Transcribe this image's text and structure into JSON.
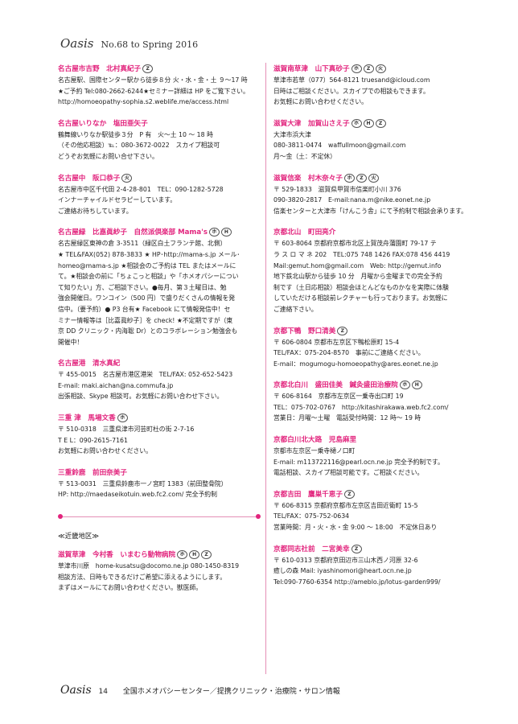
{
  "header": {
    "brand": "Oasis",
    "issue": "No.68 to Spring 2016"
  },
  "left_column": {
    "entries_top": [
      {
        "title": "名古屋市吉野　北村真紀子",
        "badges": [
          "Z"
        ],
        "lines": [
          "名古屋駅、国際センター駅から徒歩８分 火・水・金・土 ９～17 時",
          "★ご予約 Tel:080-2662-6244★セミナー詳細は HP をご覧下さい。",
          "http://homoeopathy-sophia.s2.weblife.me/access.html"
        ]
      },
      {
        "title": "名古屋いりなか　塩田亜矢子",
        "badges": [],
        "lines": [
          "鶴舞線いりなか駅徒歩３分　P 有　火～土 10 ～ 18 時",
          "（その他応相談）℡：080-3672-0022　スカイプ相談可",
          "どうぞお気軽にお問い合せ下さい。"
        ]
      },
      {
        "title": "名古屋中　阪口恭子",
        "badges": [
          "火"
        ],
        "lines": [
          "名古屋市中区千代田 2-4-28-801　TEL：090-1282-5728",
          "インナーチャイルドセラピーしています。",
          "ご連絡お待ちしています。"
        ]
      },
      {
        "title": "名古屋緑　比嘉眞紗子　自然派倶楽部 Mama's",
        "badges": [
          "ホ",
          "H"
        ],
        "lines": [
          "名古屋緑区東神の倉 3-3511（緑区白土フランテ館、北側）",
          "★ TEL&FAX(052) 878-3833 ★ HP･http://mama-s.jp メール･",
          "homeo@mama-s.jp ★相談会のご予約は TEL またはメールに",
          "て。★相談会の前に「ちょこっと相談」や「ホメオパシーについ",
          "て知りたい」方、ご相談下さい。●毎月、第３土曜日は、勉",
          "強会開催日。ワンコイン（500 円）で盛りだくさんの情報を発",
          "信中。（要予約）● P3 台有★ Facebook にて情報発信中！セ",
          "ミナー情報等は［比嘉眞紗子］を check! ★不定期ですが（東",
          "京 DD クリニック・内海聡 Dr）とのコラボレーション勉強会も",
          "開催中！"
        ]
      },
      {
        "title": "名古屋港　清水真紀",
        "badges": [],
        "lines": [
          "〒 455-0015　名古屋市港区港栄　TEL/FAX: 052-652-5423",
          "E-mail: maki.aichan@na.commufa.jp",
          "出張相談、Skype 相談可。お気軽にお問い合わせ下さい。"
        ]
      },
      {
        "title": "三重 津　馬場文香",
        "badges": [
          "ホ"
        ],
        "lines": [
          "〒 510-0318　三重県津市河芸町杜の街 2-7-16",
          "T E L：090-2615-7161",
          "お気軽にお問い合わせください。"
        ]
      },
      {
        "title": "三重鈴鹿　前田奈美子",
        "badges": [],
        "lines": [
          "〒 513-0031　三重県鈴鹿市一ノ宮町 1383（前田整骨院）",
          "HP: http://maedaseikotuin.web.fc2.com/ 完全予約制"
        ]
      }
    ],
    "region_label": "≪近畿地区≫",
    "entries_bottom": [
      {
        "title": "滋賀草津　今村香　いまむら動物病院",
        "badges": [
          "ホ",
          "H",
          "Z"
        ],
        "lines": [
          "草津市川原　home-kusatsu@docomo.ne.jp 080-1450-8319",
          "相談方法、日時もできるだけご希望に添えるようにします。",
          "まずはメールにてお問い合わせください。獣医師。"
        ]
      }
    ]
  },
  "right_column": {
    "entries": [
      {
        "title": "滋賀南草津　山下真砂子",
        "badges": [
          "ホ",
          "Z",
          "火"
        ],
        "lines": [
          "草津市若草（077）564-8121 truesand@icloud.com",
          "日時はご相談ください。スカイプでの相談もできます。",
          "お気軽にお問い合わせください。"
        ]
      },
      {
        "title": "滋賀大津　加賀山さえ子",
        "badges": [
          "ホ",
          "H",
          "Z"
        ],
        "lines": [
          "大津市浜大津",
          "080-3811-0474　waffullmoon@gmail.com",
          "月～金（土：不定休）"
        ]
      },
      {
        "title": "滋賀信楽　村木奈々子",
        "badges": [
          "ホ",
          "Z",
          "火"
        ],
        "lines": [
          "〒 529-1833　滋賀県甲賀市信楽町小川 376",
          "090-3820-2817　E-mail:nana.m@nike.eonet.ne.jp",
          "信楽センターと大津市「けんこう舎」にて予約制で相談会承ります。"
        ]
      },
      {
        "title": "京都北山　町田亮介",
        "badges": [],
        "lines": [
          "〒 603-8064 京都府京都市北区上賀茂舟蒲園町 79-17 テ",
          "ラ ス ロ マ ネ 202　TEL:075 748 1426 FAX:078 456 4419",
          "Mail:gemut.hom@gmail.com　Web: http://gemut.info",
          "地下鉄北山駅から徒歩 10 分　月曜から金曜までの完全予約",
          "制です（土日応相談）相談会ほとんどなものかなを実際に体験",
          "していただける相談前レクチャーも行っております。お気軽に",
          "ご連絡下さい。"
        ]
      },
      {
        "title": "京都下鴨　野口清美",
        "badges": [
          "Z"
        ],
        "lines": [
          "〒 606-0804 京都市左京区下鴨松原町 15-4",
          "TEL/FAX：075-204-8570　事前にご連絡ください。",
          "E-mail：mogumogu-homoeopathy@ares.eonet.ne.jp"
        ]
      },
      {
        "title": "京都北白川　盛田佳美　鍼灸盛田治療院",
        "badges": [
          "ホ",
          "H"
        ],
        "lines": [
          "〒 606-8164　京都市左京区一乗寺出口町 19",
          "TEL：075-702-0767　http://kitashirakawa.web.fc2.com/",
          "営業日：月曜～土曜　電話受付時間：12 時～ 19 時"
        ]
      },
      {
        "title": "京都白川北大路　児島麻里",
        "badges": [],
        "lines": [
          "京都市左京区一乗寺樋ノ口町",
          "E-mail: m113722116@pearl.ocn.ne.jp 完全予約制です。",
          "電話相談、スカイプ相談可能です。ご相談ください。"
        ]
      },
      {
        "title": "京都吉田　鷹巣千恵子",
        "badges": [
          "Z"
        ],
        "lines": [
          "〒 606-8315 京都府京都市左京区吉田近衛町 15-5",
          "TEL/FAX：075-752-0634",
          "営業時間：月・火・水・金 9:00 ～ 18:00　不定休日あり"
        ]
      },
      {
        "title": "京都同志社前　二宮美幸",
        "badges": [
          "Z"
        ],
        "lines": [
          "〒 610-0313 京都府京田辺市三山木西ノ河原 32-6",
          "癒しの森 Mail: iyashinomori@heart.ocn.ne.jp",
          "Tel:090-7760-6354 http://ameblo.jp/lotus-garden999/"
        ]
      }
    ]
  },
  "footer": {
    "brand": "Oasis",
    "page": "14",
    "text": "全国ホメオパシーセンター／提携クリニック・治療院・サロン情報"
  },
  "colors": {
    "accent": "#e2247d",
    "rule": "#e58fb6"
  }
}
